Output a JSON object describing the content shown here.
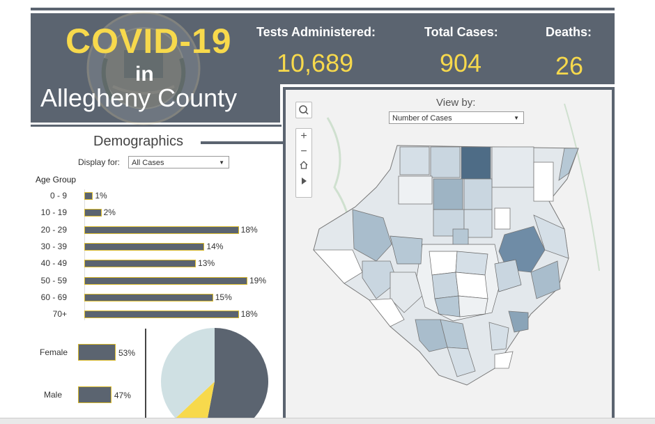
{
  "title": {
    "line1": "COVID-19",
    "line2": "in",
    "line3": "Allegheny County"
  },
  "stats": [
    {
      "label": "Tests Administered:",
      "value": "10,689"
    },
    {
      "label": "Total Cases:",
      "value": "904"
    },
    {
      "label": "Deaths:",
      "value": "26"
    }
  ],
  "map": {
    "view_by_label": "View by:",
    "view_by_selected": "Number of Cases",
    "tools": [
      "search-icon",
      "zoom-in-icon",
      "zoom-out-icon",
      "home-icon",
      "play-icon"
    ]
  },
  "demographics": {
    "title": "Demographics",
    "display_label": "Display for:",
    "display_selected": "All Cases",
    "age_title": "Age Group",
    "age_groups": [
      {
        "label": "0 - 9",
        "pct": "1%",
        "value": 1
      },
      {
        "label": "10 - 19",
        "pct": "2%",
        "value": 2
      },
      {
        "label": "20 - 29",
        "pct": "18%",
        "value": 18
      },
      {
        "label": "30 - 39",
        "pct": "14%",
        "value": 14
      },
      {
        "label": "40 - 49",
        "pct": "13%",
        "value": 13
      },
      {
        "label": "50 - 59",
        "pct": "19%",
        "value": 19
      },
      {
        "label": "60 - 69",
        "pct": "15%",
        "value": 15
      },
      {
        "label": "70+",
        "pct": "18%",
        "value": 18
      }
    ],
    "gender": [
      {
        "label": "Female",
        "pct": "53%",
        "value": 53
      },
      {
        "label": "Male",
        "pct": "47%",
        "value": 47
      }
    ]
  },
  "colors": {
    "panel": "#5b6470",
    "accent": "#f7d94c",
    "pie_light": "#cfe0e3",
    "map_dark": "#4e6c86"
  }
}
